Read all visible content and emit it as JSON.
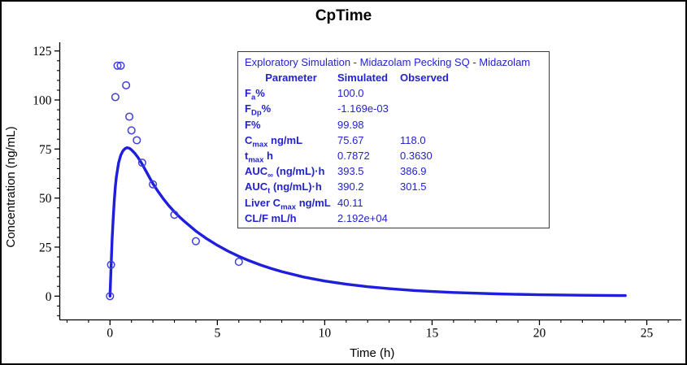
{
  "window": {
    "background": "#ffffff",
    "border_color": "#000000"
  },
  "colors": {
    "line_blue": "#1e1edc",
    "marker_blue": "#4040df",
    "table_text_blue": "#2323cd",
    "axis_black": "#000000",
    "title_black": "#000000",
    "box_border": "#3a3a3a"
  },
  "chart_data": {
    "type": "line+scatter",
    "title": "CpTime",
    "xlabel": "Time (h)",
    "ylabel": "Concentration (ng/mL)",
    "xlim": [
      -2.34,
      26.62
    ],
    "ylim": [
      -12.1,
      129.4
    ],
    "x_major_ticks": [
      0,
      5,
      10,
      15,
      20,
      25
    ],
    "x_minor_step": 1,
    "y_major_ticks": [
      0,
      25,
      50,
      75,
      100,
      125
    ],
    "y_minor_step": 5,
    "grid": false,
    "legend": false,
    "series": [
      {
        "name": "Simulated",
        "type": "line",
        "color": "#1e1edc",
        "x": [
          0,
          0.03,
          0.06,
          0.1,
          0.15,
          0.2,
          0.25,
          0.3,
          0.4,
          0.5,
          0.6,
          0.7,
          0.79,
          0.9,
          1.0,
          1.15,
          1.3,
          1.5,
          1.75,
          2,
          2.25,
          2.5,
          2.75,
          3,
          3.25,
          3.5,
          4,
          4.5,
          5,
          5.5,
          6,
          6.5,
          7,
          7.5,
          8,
          9,
          10,
          11,
          12,
          13,
          14,
          15,
          16,
          18,
          20,
          22,
          24
        ],
        "y": [
          0,
          9,
          18,
          29,
          40,
          49,
          56,
          61,
          68,
          71.8,
          74,
          75.2,
          75.67,
          75.4,
          74.6,
          72.9,
          70.8,
          67.3,
          62.3,
          57.3,
          53.2,
          49.4,
          46,
          43,
          40.3,
          37.8,
          33.2,
          29.3,
          25.9,
          22.9,
          20.3,
          18,
          15.9,
          14.1,
          12.5,
          9.8,
          7.7,
          6.1,
          4.8,
          3.8,
          3,
          2.35,
          1.85,
          1.15,
          0.72,
          0.45,
          0.28
        ]
      },
      {
        "name": "Observed",
        "type": "scatter",
        "marker": "open-circle",
        "color": "#4040df",
        "x": [
          0,
          0.05,
          0.25,
          0.35,
          0.5,
          0.75,
          0.9,
          1.0,
          1.25,
          1.5,
          2,
          3,
          4,
          6
        ],
        "y": [
          0,
          16,
          101.5,
          117.5,
          117.5,
          107.5,
          91.5,
          84.5,
          79.5,
          68,
          57,
          41.5,
          28,
          17.5
        ]
      }
    ]
  },
  "info_box": {
    "title": "Exploratory Simulation - Midazolam Pecking SQ - Midazolam",
    "columns": [
      "Parameter",
      "Simulated",
      "Observed"
    ],
    "rows": [
      {
        "label": "F_{a}%",
        "simulated": "100.0",
        "observed": ""
      },
      {
        "label": "F_{Dp}%",
        "simulated": "-1.169e-03",
        "observed": ""
      },
      {
        "label": "F%",
        "simulated": "99.98",
        "observed": ""
      },
      {
        "label": "C_{max} ng/mL",
        "simulated": "75.67",
        "observed": "118.0"
      },
      {
        "label": "t_{max} h",
        "simulated": "0.7872",
        "observed": "0.3630"
      },
      {
        "label": "AUC_{∞} (ng/mL)·h",
        "simulated": "393.5",
        "observed": "386.9"
      },
      {
        "label": "AUC_{t} (ng/mL)·h",
        "simulated": "390.2",
        "observed": "301.5"
      },
      {
        "label": "Liver C_{max} ng/mL",
        "simulated": "40.11",
        "observed": ""
      },
      {
        "label": "CL/F mL/h",
        "simulated": "2.192e+04",
        "observed": ""
      }
    ]
  }
}
